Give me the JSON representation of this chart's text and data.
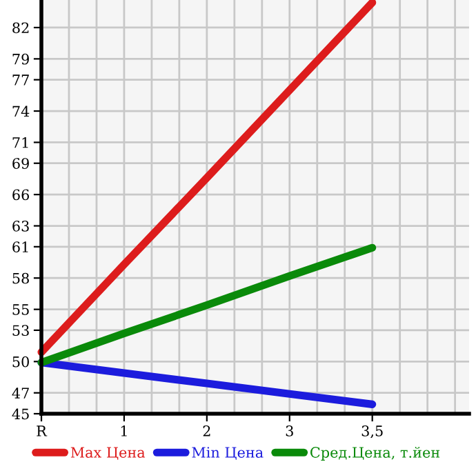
{
  "chart_data": {
    "type": "line",
    "categories": [
      "R",
      "1",
      "2",
      "3",
      "3,5"
    ],
    "series": [
      {
        "name": "Max Цена",
        "color": "#dd1c1c",
        "values": [
          50.9,
          59.3,
          67.6,
          76.0,
          84.4
        ]
      },
      {
        "name": "Min Цена",
        "color": "#1c1cdd",
        "values": [
          49.9,
          48.9,
          47.9,
          46.9,
          45.9
        ]
      },
      {
        "name": "Сред.Цена, т.йен",
        "color": "#0a8a0a",
        "values": [
          49.9,
          52.7,
          55.4,
          58.2,
          60.9
        ]
      }
    ],
    "ylim": [
      45,
      84.64
    ],
    "yticks": [
      45,
      47,
      50,
      53,
      55,
      58,
      61,
      63,
      66,
      69,
      71,
      74,
      77,
      79,
      82
    ],
    "grid": true,
    "legend": "bottom",
    "marker": "none",
    "line_style": "solid"
  }
}
